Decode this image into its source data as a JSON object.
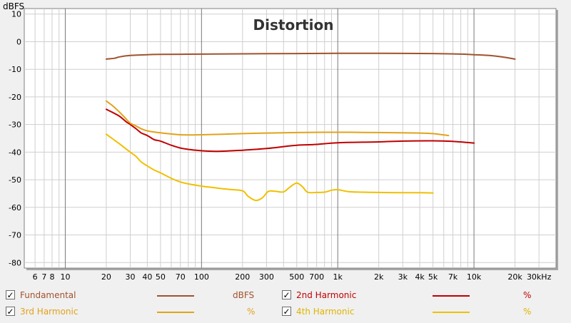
{
  "chart_data": {
    "type": "line",
    "title": "Distortion",
    "ylabel": "dBFS",
    "xlabel": "",
    "x_scale": "log",
    "xlim": [
      5,
      40000
    ],
    "ylim": [
      -82,
      12
    ],
    "grid": true,
    "y_ticks": [
      10,
      0,
      -10,
      -20,
      -30,
      -40,
      -50,
      -60,
      -70,
      -80
    ],
    "x_tick_labels": [
      {
        "v": 6,
        "t": "6"
      },
      {
        "v": 7,
        "t": "7"
      },
      {
        "v": 8,
        "t": "8"
      },
      {
        "v": 10,
        "t": "10"
      },
      {
        "v": 20,
        "t": "20"
      },
      {
        "v": 30,
        "t": "30"
      },
      {
        "v": 40,
        "t": "40"
      },
      {
        "v": 50,
        "t": "50"
      },
      {
        "v": 70,
        "t": "70"
      },
      {
        "v": 100,
        "t": "100"
      },
      {
        "v": 200,
        "t": "200"
      },
      {
        "v": 300,
        "t": "300"
      },
      {
        "v": 500,
        "t": "500"
      },
      {
        "v": 700,
        "t": "700"
      },
      {
        "v": 1000,
        "t": "1k"
      },
      {
        "v": 2000,
        "t": "2k"
      },
      {
        "v": 3000,
        "t": "3k"
      },
      {
        "v": 4000,
        "t": "4k"
      },
      {
        "v": 5000,
        "t": "5k"
      },
      {
        "v": 7000,
        "t": "7k"
      },
      {
        "v": 10000,
        "t": "10k"
      },
      {
        "v": 20000,
        "t": "20k"
      },
      {
        "v": 30000,
        "t": "30kHz"
      }
    ],
    "series": [
      {
        "name": "Fundamental",
        "unit": "dBFS",
        "color": "#a0522d",
        "points": [
          [
            20,
            -6.3
          ],
          [
            23,
            -6.0
          ],
          [
            25,
            -5.5
          ],
          [
            30,
            -5.0
          ],
          [
            40,
            -4.7
          ],
          [
            50,
            -4.6
          ],
          [
            100,
            -4.5
          ],
          [
            200,
            -4.4
          ],
          [
            500,
            -4.3
          ],
          [
            1000,
            -4.2
          ],
          [
            2000,
            -4.2
          ],
          [
            5000,
            -4.3
          ],
          [
            8000,
            -4.5
          ],
          [
            10000,
            -4.7
          ],
          [
            13000,
            -5.0
          ],
          [
            16000,
            -5.5
          ],
          [
            20000,
            -6.3
          ]
        ]
      },
      {
        "name": "2nd Harmonic",
        "unit": "%",
        "color": "#c00000",
        "points": [
          [
            20,
            -24.5
          ],
          [
            22,
            -25.5
          ],
          [
            25,
            -27
          ],
          [
            28,
            -29
          ],
          [
            30,
            -30
          ],
          [
            33,
            -31.5
          ],
          [
            36,
            -33
          ],
          [
            40,
            -34
          ],
          [
            45,
            -35.5
          ],
          [
            50,
            -36
          ],
          [
            60,
            -37.5
          ],
          [
            70,
            -38.5
          ],
          [
            80,
            -39
          ],
          [
            100,
            -39.5
          ],
          [
            130,
            -39.7
          ],
          [
            200,
            -39.3
          ],
          [
            300,
            -38.7
          ],
          [
            400,
            -38
          ],
          [
            500,
            -37.5
          ],
          [
            700,
            -37.2
          ],
          [
            1000,
            -36.6
          ],
          [
            2000,
            -36.3
          ],
          [
            3000,
            -36.0
          ],
          [
            5000,
            -35.9
          ],
          [
            7000,
            -36.1
          ],
          [
            10000,
            -36.7
          ]
        ]
      },
      {
        "name": "3rd Harmonic",
        "unit": "%",
        "color": "#e3a21a",
        "points": [
          [
            20,
            -21.5
          ],
          [
            22,
            -23
          ],
          [
            25,
            -25.5
          ],
          [
            28,
            -28
          ],
          [
            30,
            -29.5
          ],
          [
            33,
            -30.5
          ],
          [
            36,
            -31.5
          ],
          [
            40,
            -32.3
          ],
          [
            50,
            -33
          ],
          [
            70,
            -33.7
          ],
          [
            100,
            -33.7
          ],
          [
            200,
            -33.3
          ],
          [
            300,
            -33.1
          ],
          [
            500,
            -32.9
          ],
          [
            1000,
            -32.8
          ],
          [
            2000,
            -32.9
          ],
          [
            3000,
            -33.0
          ],
          [
            4000,
            -33.1
          ],
          [
            5000,
            -33.3
          ],
          [
            6500,
            -34.0
          ]
        ]
      },
      {
        "name": "4th Harmonic",
        "unit": "%",
        "color": "#f0c000",
        "points": [
          [
            20,
            -33.5
          ],
          [
            22,
            -35
          ],
          [
            25,
            -37
          ],
          [
            30,
            -40
          ],
          [
            33,
            -41.5
          ],
          [
            36,
            -43.5
          ],
          [
            40,
            -45
          ],
          [
            45,
            -46.5
          ],
          [
            50,
            -47.5
          ],
          [
            60,
            -49.5
          ],
          [
            70,
            -50.8
          ],
          [
            80,
            -51.5
          ],
          [
            100,
            -52.3
          ],
          [
            130,
            -53
          ],
          [
            160,
            -53.5
          ],
          [
            200,
            -54
          ],
          [
            220,
            -56
          ],
          [
            250,
            -57.5
          ],
          [
            280,
            -56.5
          ],
          [
            310,
            -54.2
          ],
          [
            350,
            -54.2
          ],
          [
            400,
            -54.4
          ],
          [
            450,
            -52.5
          ],
          [
            500,
            -51.2
          ],
          [
            550,
            -52.5
          ],
          [
            600,
            -54.5
          ],
          [
            700,
            -54.6
          ],
          [
            800,
            -54.5
          ],
          [
            900,
            -53.8
          ],
          [
            1000,
            -53.6
          ],
          [
            1200,
            -54.3
          ],
          [
            1500,
            -54.5
          ],
          [
            2000,
            -54.6
          ],
          [
            3000,
            -54.7
          ],
          [
            4000,
            -54.7
          ],
          [
            5000,
            -54.8
          ]
        ]
      }
    ]
  }
}
